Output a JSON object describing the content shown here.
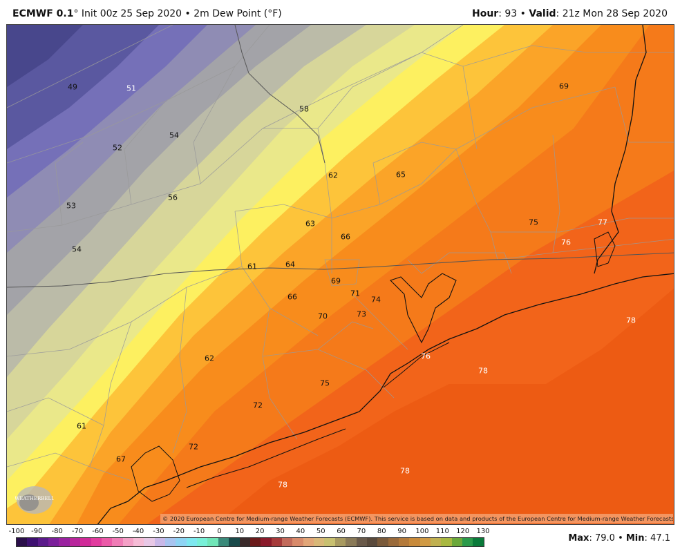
{
  "header": {
    "model": "ECMWF 0.1",
    "degree": "°",
    "init": "Init 00z 25 Sep 2020",
    "bullet": "•",
    "field": "2m Dew Point (°F)",
    "hour_label": "Hour",
    "hour_value": "93",
    "valid_label": "Valid",
    "valid_value": "21z Mon 28 Sep 2020"
  },
  "map_values": [
    {
      "text": "49",
      "color": "dark"
    },
    {
      "text": "51",
      "color": "light"
    },
    {
      "text": "58",
      "color": "dark"
    },
    {
      "text": "69",
      "color": "dark"
    },
    {
      "text": "54",
      "color": "dark"
    },
    {
      "text": "52",
      "color": "dark"
    },
    {
      "text": "62",
      "color": "dark"
    },
    {
      "text": "65",
      "color": "dark"
    },
    {
      "text": "56",
      "color": "dark"
    },
    {
      "text": "53",
      "color": "dark"
    },
    {
      "text": "63",
      "color": "dark"
    },
    {
      "text": "75",
      "color": "dark"
    },
    {
      "text": "77",
      "color": "light"
    },
    {
      "text": "66",
      "color": "dark"
    },
    {
      "text": "76",
      "color": "light"
    },
    {
      "text": "54",
      "color": "dark"
    },
    {
      "text": "61",
      "color": "dark"
    },
    {
      "text": "64",
      "color": "dark"
    },
    {
      "text": "69",
      "color": "dark"
    },
    {
      "text": "71",
      "color": "dark"
    },
    {
      "text": "74",
      "color": "dark"
    },
    {
      "text": "66",
      "color": "dark"
    },
    {
      "text": "70",
      "color": "dark"
    },
    {
      "text": "73",
      "color": "dark"
    },
    {
      "text": "78",
      "color": "light"
    },
    {
      "text": "76",
      "color": "light"
    },
    {
      "text": "62",
      "color": "dark"
    },
    {
      "text": "78",
      "color": "light"
    },
    {
      "text": "75",
      "color": "dark"
    },
    {
      "text": "72",
      "color": "dark"
    },
    {
      "text": "61",
      "color": "dark"
    },
    {
      "text": "72",
      "color": "dark"
    },
    {
      "text": "67",
      "color": "dark"
    },
    {
      "text": "78",
      "color": "light"
    },
    {
      "text": "78",
      "color": "light"
    }
  ],
  "copyright": "© 2020 European Centre for Medium-range Weather Forecasts (ECMWF). This service is based on data and products of the European Centre for Medium-range Weather Forecasts (ECMWF).",
  "logo": {
    "text": "WEATHERBELL"
  },
  "colorbar": {
    "ticks": [
      "-100",
      "-90",
      "-80",
      "-70",
      "-60",
      "-50",
      "-40",
      "-30",
      "-20",
      "-10",
      "0",
      "10",
      "20",
      "30",
      "40",
      "50",
      "60",
      "70",
      "80",
      "90",
      "100",
      "110",
      "120",
      "130"
    ],
    "colors": [
      "#2a0f4a",
      "#3d1070",
      "#5a1a8a",
      "#7a1f9a",
      "#9a22a0",
      "#b8259c",
      "#d02a98",
      "#e23b9e",
      "#ec5aa8",
      "#f07cb6",
      "#f4a0c6",
      "#f6bcd6",
      "#e8c8e6",
      "#c9b8e8",
      "#a8c4f0",
      "#8ed4f4",
      "#7ee8f0",
      "#78f0d8",
      "#70e6b8",
      "#3a8a7a",
      "#1a4a4a",
      "#3a2a2a",
      "#6a1a1a",
      "#8a1a2a",
      "#a63a3a",
      "#c26a5a",
      "#d88a6a",
      "#e2a678",
      "#d9b878",
      "#c8c070",
      "#a89a60",
      "#8a7a58",
      "#6a5a4a",
      "#5a4a3c",
      "#7a5a3a",
      "#9a6a3a",
      "#b47a3a",
      "#c88a3a",
      "#d09a44",
      "#c0b050",
      "#a8b840",
      "#6aa83a",
      "#2a9a4a",
      "#0a7a3a"
    ]
  },
  "maxmin": {
    "max_label": "Max",
    "max_value": "79.0",
    "min_label": "Min",
    "min_value": "47.1"
  }
}
